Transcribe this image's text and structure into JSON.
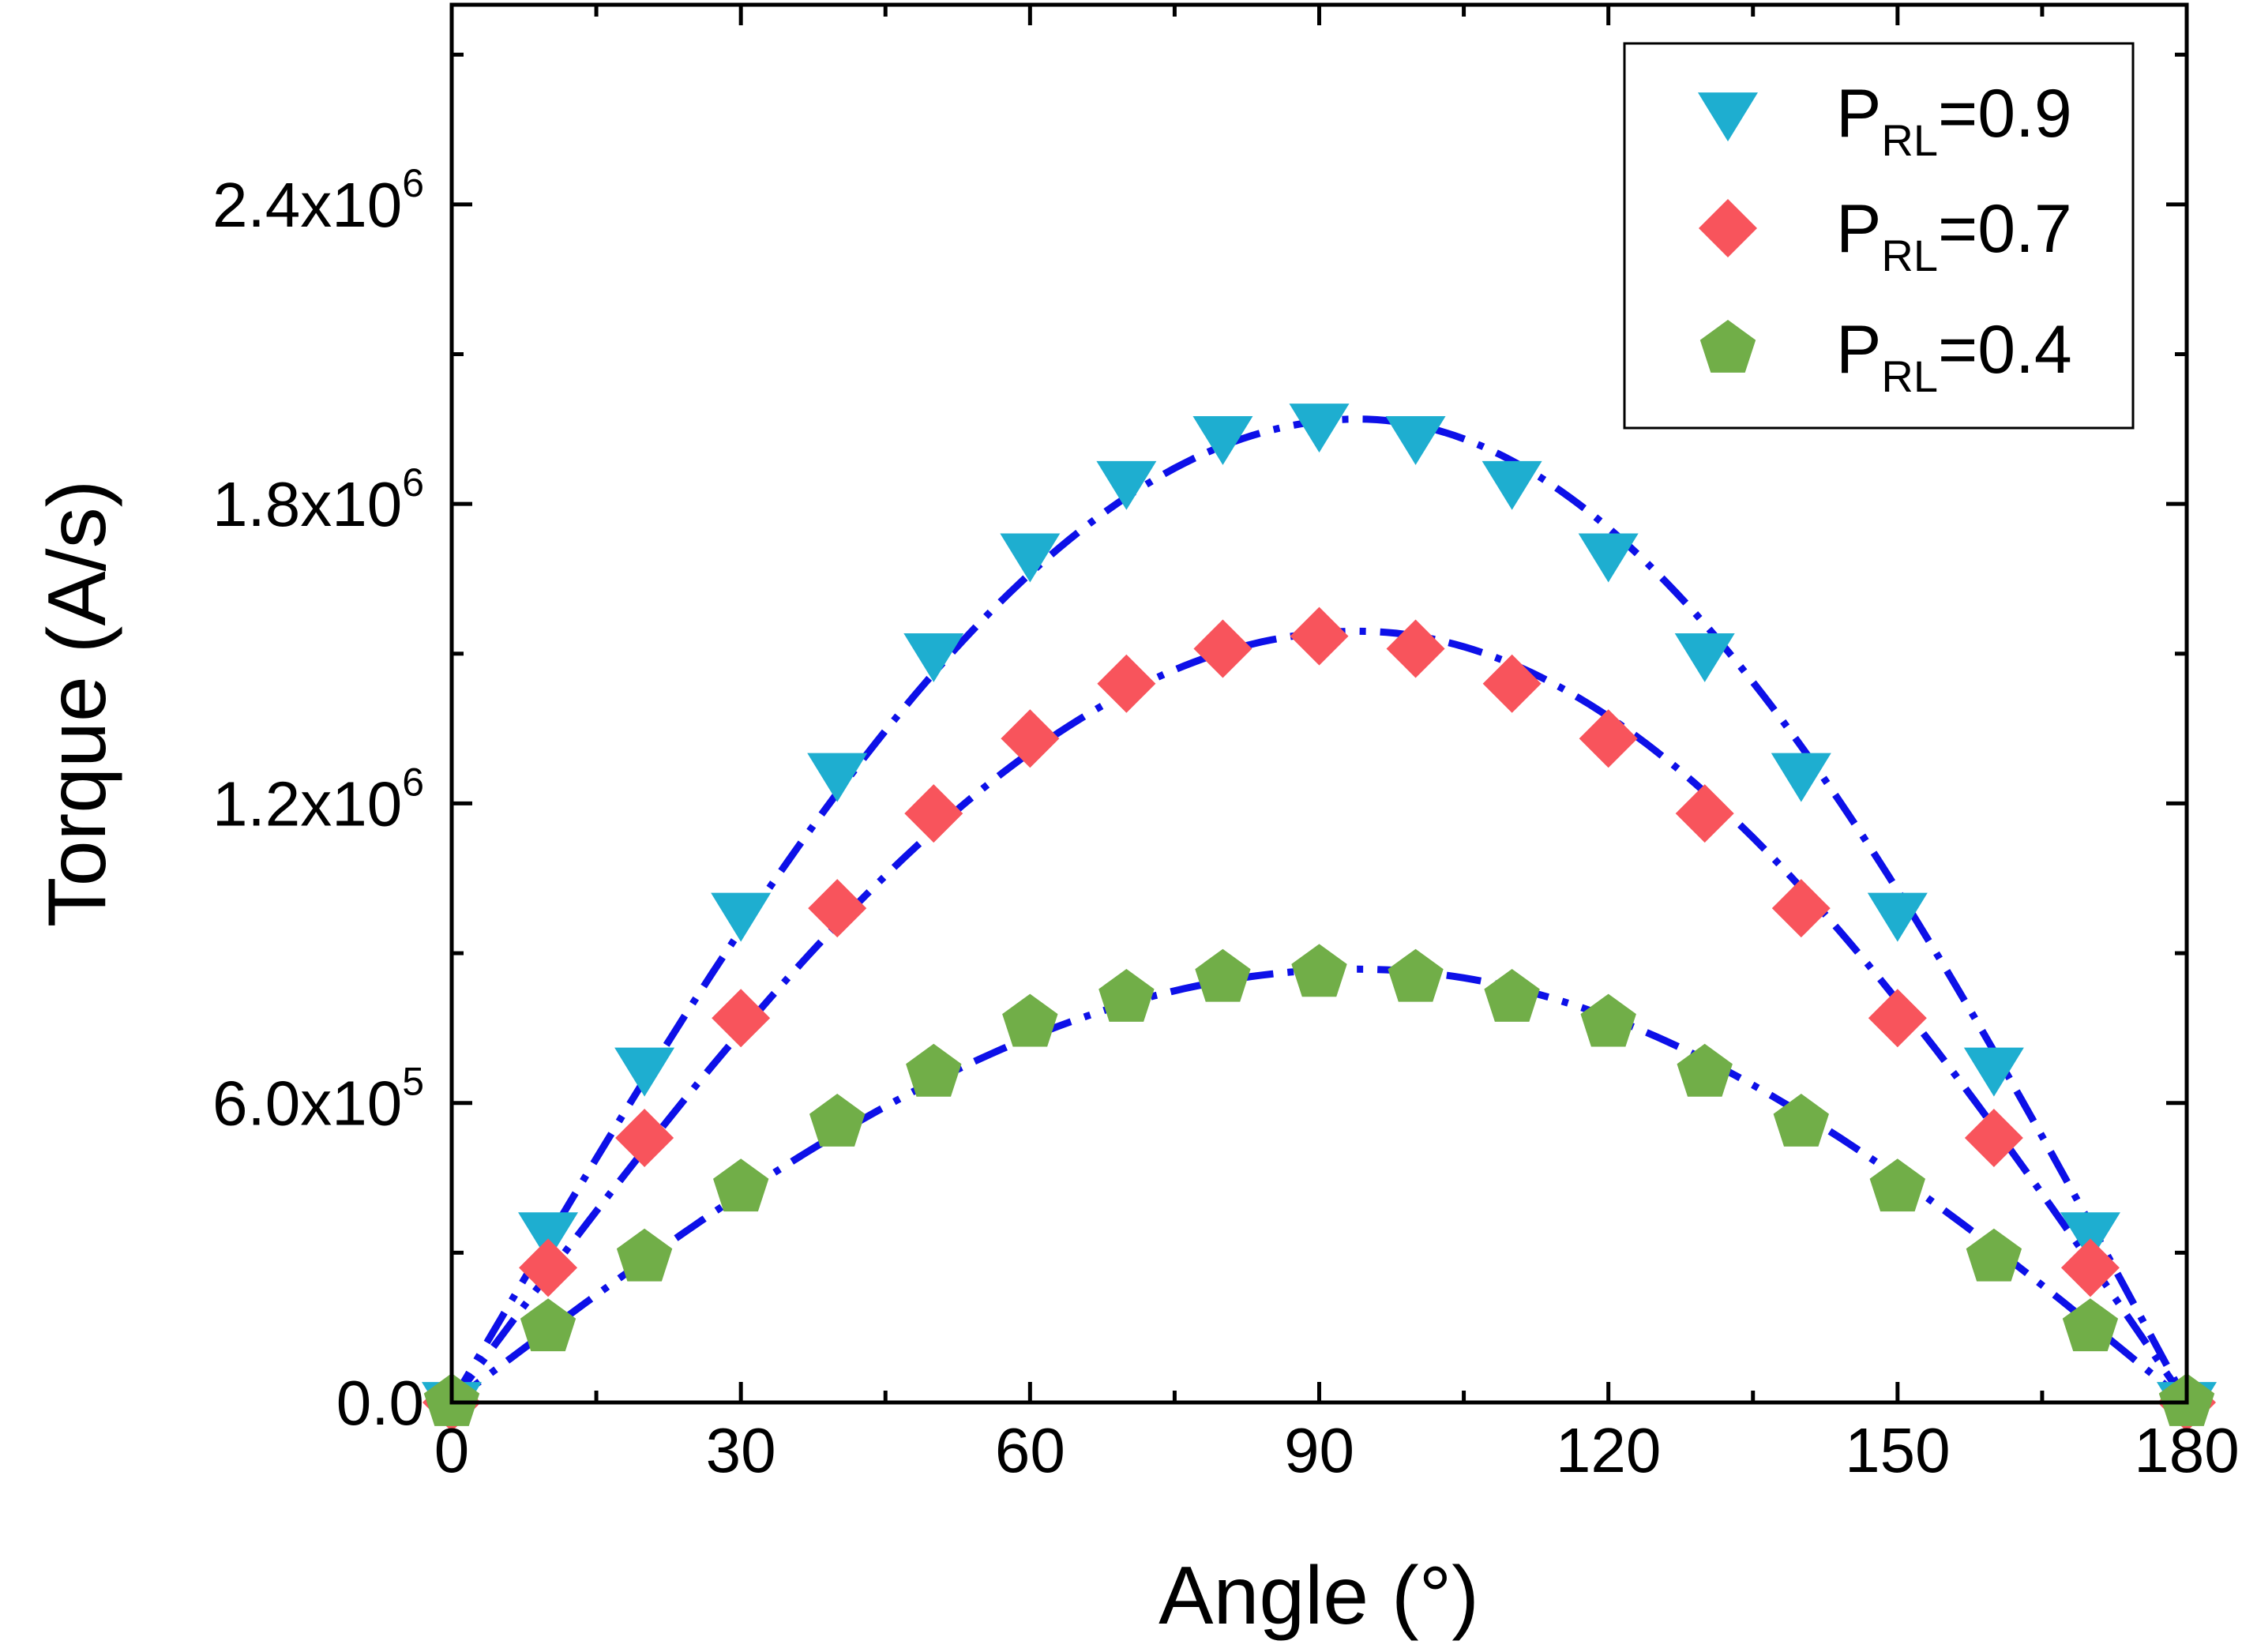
{
  "chart_data": {
    "type": "scatter",
    "title": "",
    "xlabel": "Angle (°)",
    "ylabel": "Torque (A/s)",
    "xlim": [
      0,
      180
    ],
    "ylim": [
      0,
      2800000
    ],
    "x_ticks": [
      {
        "value": 0,
        "label": "0"
      },
      {
        "value": 30,
        "label": "30"
      },
      {
        "value": 60,
        "label": "60"
      },
      {
        "value": 90,
        "label": "90"
      },
      {
        "value": 120,
        "label": "120"
      },
      {
        "value": 150,
        "label": "150"
      },
      {
        "value": 180,
        "label": "180"
      }
    ],
    "y_ticks": [
      {
        "value": 0,
        "mantissa": "0.0",
        "exponent": ""
      },
      {
        "value": 600000,
        "mantissa": "6.0x10",
        "exponent": "5"
      },
      {
        "value": 1200000,
        "mantissa": "1.2x10",
        "exponent": "6"
      },
      {
        "value": 1800000,
        "mantissa": "1.8x10",
        "exponent": "6"
      },
      {
        "value": 2400000,
        "mantissa": "2.4x10",
        "exponent": "6"
      }
    ],
    "x_minor_step": 15,
    "y_minor_step": 300000,
    "grid": false,
    "legend_position": "top-right",
    "x": [
      0,
      10,
      20,
      30,
      40,
      50,
      60,
      70,
      80,
      90,
      100,
      110,
      120,
      130,
      140,
      150,
      160,
      170,
      180
    ],
    "series": [
      {
        "name": "P_RL=0.9",
        "legend_main": "P",
        "legend_sub": "RL",
        "legend_tail": "=0.9",
        "marker": "triangle-down",
        "color": "#1EAED0",
        "values": [
          0,
          340000,
          670000,
          980000,
          1260000,
          1500000,
          1700000,
          1845000,
          1935000,
          1960000,
          1935000,
          1845000,
          1700000,
          1500000,
          1260000,
          980000,
          670000,
          340000,
          0
        ]
      },
      {
        "name": "P_RL=0.7",
        "legend_main": "P",
        "legend_sub": "RL",
        "legend_tail": "=0.7",
        "marker": "diamond",
        "color": "#F8545C",
        "values": [
          0,
          270000,
          530000,
          770000,
          990000,
          1180000,
          1330000,
          1440000,
          1510000,
          1535000,
          1510000,
          1440000,
          1330000,
          1180000,
          990000,
          770000,
          530000,
          270000,
          0
        ]
      },
      {
        "name": "P_RL=0.4",
        "legend_main": "P",
        "legend_sub": "RL",
        "legend_tail": "=0.4",
        "marker": "pentagon",
        "color": "#71AE48",
        "values": [
          0,
          150000,
          290000,
          430000,
          560000,
          660000,
          760000,
          810000,
          850000,
          860000,
          850000,
          810000,
          760000,
          660000,
          560000,
          430000,
          290000,
          150000,
          0
        ]
      }
    ],
    "fit": {
      "color": "#0D10E8",
      "style": "dash-dot",
      "peaks": [
        1970000,
        1545000,
        868000
      ],
      "peak_angle": 94
    }
  }
}
